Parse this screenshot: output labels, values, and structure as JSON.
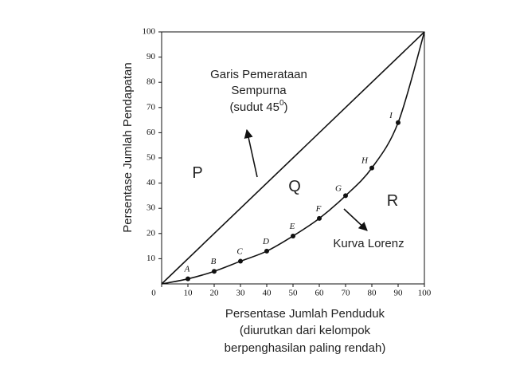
{
  "chart_data": {
    "type": "lorenz",
    "x_label": [
      "Persentase Jumlah Penduduk",
      "(diurutkan dari kelompok",
      "berpenghasilan paling rendah)"
    ],
    "y_label": "Persentase Jumlah Pendapatan",
    "x": [
      0,
      10,
      20,
      30,
      40,
      50,
      60,
      70,
      80,
      90,
      100
    ],
    "series": [
      {
        "color": "#111111",
        "values": [
          0,
          2,
          5,
          9,
          13,
          19,
          26,
          35,
          46,
          64,
          100
        ],
        "point_labels": [
          null,
          "A",
          "B",
          "C",
          "D",
          "E",
          "F",
          "G",
          "H",
          "I",
          null
        ]
      }
    ],
    "equality_line": {
      "x": [
        0,
        100
      ],
      "values": [
        0,
        100
      ],
      "color": "#111111"
    },
    "xlim": [
      0,
      100
    ],
    "ylim": [
      0,
      100
    ],
    "xticks": [
      0,
      10,
      20,
      30,
      40,
      50,
      60,
      70,
      80,
      90,
      100
    ],
    "yticks": [
      10,
      20,
      30,
      40,
      50,
      60,
      70,
      80,
      90,
      100
    ],
    "annotations": {
      "equality": {
        "line1": "Garis Pemerataan",
        "line2": "Sempurna",
        "line3_prefix": "(sudut 45",
        "line3_sup": "0",
        "line3_suffix": ")"
      },
      "lorenz": "Kurva Lorenz",
      "regions": [
        "P",
        "Q",
        "R"
      ]
    }
  }
}
